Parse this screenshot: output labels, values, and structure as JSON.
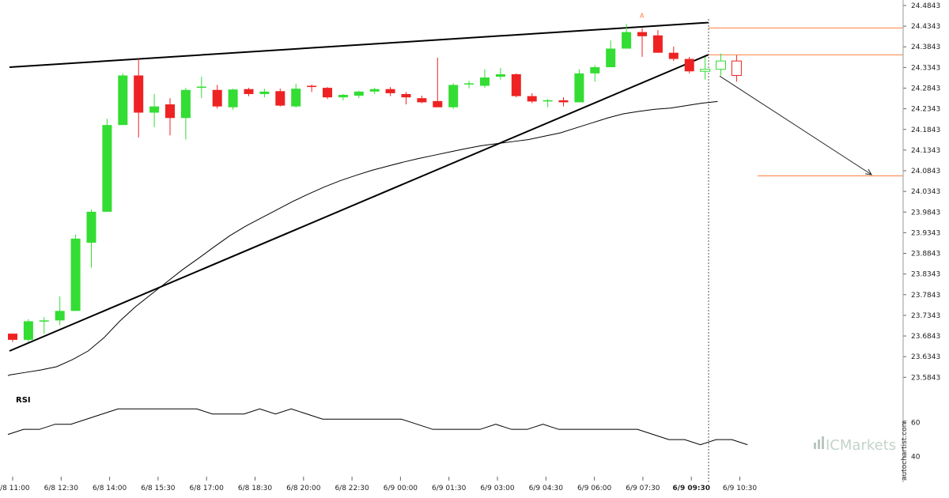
{
  "chart_data": {
    "type": "candlestick",
    "y_ticks": [
      24.4843,
      24.4343,
      24.3843,
      24.3343,
      24.2843,
      24.2343,
      24.1843,
      24.1343,
      24.0843,
      24.0343,
      23.9843,
      23.9343,
      23.8843,
      23.8343,
      23.7843,
      23.7343,
      23.6843,
      23.6343,
      23.5843
    ],
    "ylim": [
      23.56,
      24.49
    ],
    "x_ticks": [
      "6/8 11:00",
      "6/8 12:30",
      "6/8 14:00",
      "6/8 15:30",
      "6/8 17:00",
      "6/8 18:30",
      "6/8 20:00",
      "6/8 22:30",
      "6/9 00:00",
      "6/9 01:30",
      "6/9 03:00",
      "6/9 04:30",
      "6/9 06:00",
      "6/9 07:30",
      "6/9 09:30",
      "6/9 10:30"
    ],
    "highlight_tick": "6/9 09:30",
    "candles": [
      {
        "o": 23.69,
        "h": 23.69,
        "l": 23.67,
        "c": 23.675,
        "dir": "down"
      },
      {
        "o": 23.675,
        "h": 23.725,
        "l": 23.67,
        "c": 23.72,
        "dir": "up"
      },
      {
        "o": 23.72,
        "h": 23.73,
        "l": 23.69,
        "c": 23.722,
        "dir": "flat"
      },
      {
        "o": 23.722,
        "h": 23.78,
        "l": 23.71,
        "c": 23.745,
        "dir": "up"
      },
      {
        "o": 23.745,
        "h": 23.93,
        "l": 23.745,
        "c": 23.92,
        "dir": "up"
      },
      {
        "o": 23.91,
        "h": 23.99,
        "l": 23.85,
        "c": 23.985,
        "dir": "up"
      },
      {
        "o": 23.985,
        "h": 24.21,
        "l": 23.985,
        "c": 24.195,
        "dir": "up"
      },
      {
        "o": 24.195,
        "h": 24.32,
        "l": 24.195,
        "c": 24.315,
        "dir": "up"
      },
      {
        "o": 24.315,
        "h": 24.355,
        "l": 24.165,
        "c": 24.225,
        "dir": "down"
      },
      {
        "o": 24.225,
        "h": 24.27,
        "l": 24.19,
        "c": 24.24,
        "dir": "up"
      },
      {
        "o": 24.245,
        "h": 24.26,
        "l": 24.17,
        "c": 24.212,
        "dir": "down"
      },
      {
        "o": 24.212,
        "h": 24.285,
        "l": 24.16,
        "c": 24.28,
        "dir": "up"
      },
      {
        "o": 24.285,
        "h": 24.312,
        "l": 24.26,
        "c": 24.288,
        "dir": "flat"
      },
      {
        "o": 24.28,
        "h": 24.292,
        "l": 24.235,
        "c": 24.24,
        "dir": "down"
      },
      {
        "o": 24.238,
        "h": 24.283,
        "l": 24.232,
        "c": 24.281,
        "dir": "up"
      },
      {
        "o": 24.282,
        "h": 24.285,
        "l": 24.265,
        "c": 24.27,
        "dir": "down"
      },
      {
        "o": 24.27,
        "h": 24.283,
        "l": 24.262,
        "c": 24.276,
        "dir": "up"
      },
      {
        "o": 24.277,
        "h": 24.283,
        "l": 24.24,
        "c": 24.242,
        "dir": "down"
      },
      {
        "o": 24.24,
        "h": 24.295,
        "l": 24.237,
        "c": 24.283,
        "dir": "up"
      },
      {
        "o": 24.29,
        "h": 24.293,
        "l": 24.275,
        "c": 24.287,
        "dir": "down"
      },
      {
        "o": 24.285,
        "h": 24.287,
        "l": 24.258,
        "c": 24.262,
        "dir": "down"
      },
      {
        "o": 24.262,
        "h": 24.27,
        "l": 24.255,
        "c": 24.268,
        "dir": "up"
      },
      {
        "o": 24.266,
        "h": 24.278,
        "l": 24.26,
        "c": 24.276,
        "dir": "up"
      },
      {
        "o": 24.276,
        "h": 24.285,
        "l": 24.27,
        "c": 24.282,
        "dir": "up"
      },
      {
        "o": 24.282,
        "h": 24.287,
        "l": 24.265,
        "c": 24.272,
        "dir": "down"
      },
      {
        "o": 24.27,
        "h": 24.275,
        "l": 24.245,
        "c": 24.262,
        "dir": "down"
      },
      {
        "o": 24.26,
        "h": 24.266,
        "l": 24.248,
        "c": 24.25,
        "dir": "down"
      },
      {
        "o": 24.253,
        "h": 24.358,
        "l": 24.24,
        "c": 24.238,
        "dir": "down"
      },
      {
        "o": 24.238,
        "h": 24.296,
        "l": 24.234,
        "c": 24.292,
        "dir": "up"
      },
      {
        "o": 24.295,
        "h": 24.302,
        "l": 24.284,
        "c": 24.296,
        "dir": "flat"
      },
      {
        "o": 24.29,
        "h": 24.33,
        "l": 24.285,
        "c": 24.31,
        "dir": "up"
      },
      {
        "o": 24.312,
        "h": 24.333,
        "l": 24.305,
        "c": 24.318,
        "dir": "up"
      },
      {
        "o": 24.318,
        "h": 24.32,
        "l": 24.262,
        "c": 24.265,
        "dir": "down"
      },
      {
        "o": 24.265,
        "h": 24.272,
        "l": 24.248,
        "c": 24.252,
        "dir": "down"
      },
      {
        "o": 24.252,
        "h": 24.258,
        "l": 24.238,
        "c": 24.255,
        "dir": "up"
      },
      {
        "o": 24.255,
        "h": 24.262,
        "l": 24.24,
        "c": 24.25,
        "dir": "down"
      },
      {
        "o": 24.25,
        "h": 24.33,
        "l": 24.25,
        "c": 24.32,
        "dir": "up"
      },
      {
        "o": 24.32,
        "h": 24.34,
        "l": 24.3,
        "c": 24.335,
        "dir": "up"
      },
      {
        "o": 24.335,
        "h": 24.4,
        "l": 24.335,
        "c": 24.38,
        "dir": "up"
      },
      {
        "o": 24.38,
        "h": 24.44,
        "l": 24.38,
        "c": 24.42,
        "dir": "up"
      },
      {
        "o": 24.42,
        "h": 24.43,
        "l": 24.36,
        "c": 24.41,
        "dir": "down"
      },
      {
        "o": 24.412,
        "h": 24.425,
        "l": 24.37,
        "c": 24.37,
        "dir": "down"
      },
      {
        "o": 24.37,
        "h": 24.385,
        "l": 24.35,
        "c": 24.355,
        "dir": "down"
      },
      {
        "o": 24.355,
        "h": 24.36,
        "l": 24.32,
        "c": 24.325,
        "dir": "down"
      },
      {
        "o": 24.325,
        "h": 24.36,
        "l": 24.305,
        "c": 24.33,
        "dir": "up",
        "projected": true
      },
      {
        "o": 24.33,
        "h": 24.368,
        "l": 24.315,
        "c": 24.35,
        "dir": "up",
        "projected": true
      },
      {
        "o": 24.35,
        "h": 24.364,
        "l": 24.3,
        "c": 24.315,
        "dir": "down",
        "projected": true
      }
    ],
    "moving_average": [
      23.59,
      23.596,
      23.602,
      23.61,
      23.627,
      23.648,
      23.68,
      23.72,
      23.755,
      23.785,
      23.815,
      23.845,
      23.872,
      23.9,
      23.927,
      23.95,
      23.97,
      23.99,
      24.01,
      24.028,
      24.045,
      24.06,
      24.073,
      24.085,
      24.095,
      24.105,
      24.114,
      24.122,
      24.13,
      24.138,
      24.145,
      24.15,
      24.155,
      24.16,
      24.168,
      24.176,
      24.188,
      24.2,
      24.212,
      24.222,
      24.228,
      24.233,
      24.236,
      24.242,
      24.248,
      24.252
    ],
    "levels": [
      {
        "name": "resistance",
        "value": 24.43
      },
      {
        "name": "support",
        "value": 24.365
      },
      {
        "name": "target",
        "value": 24.072
      }
    ],
    "trendlines": [
      {
        "name": "upper",
        "from": [
          0,
          24.335
        ],
        "to": [
          44.2,
          24.443
        ]
      },
      {
        "name": "lower",
        "from": [
          0,
          23.648
        ],
        "to": [
          44.2,
          24.365
        ]
      }
    ],
    "forecast_arrow": {
      "from": [
        44.2,
        24.325
      ],
      "to": [
        49.5,
        24.075
      ]
    },
    "pattern_point_label": "A",
    "rsi": {
      "label": "RSI",
      "ticks": [
        60,
        40
      ],
      "ylim": [
        32,
        76
      ],
      "values": [
        53,
        56,
        56,
        59,
        59,
        62,
        65,
        68,
        68,
        68,
        68,
        68,
        68,
        65,
        65,
        65,
        68,
        65,
        68,
        65,
        62,
        62,
        62,
        62,
        62,
        62,
        59,
        56,
        56,
        56,
        56,
        59,
        56,
        56,
        59,
        56,
        56,
        56,
        56,
        56,
        56,
        53,
        50,
        50,
        47,
        50,
        50,
        47
      ]
    }
  },
  "brand": {
    "name": "ICMarkets",
    "color": "#2e9d63"
  },
  "watermark": "autochartist.com",
  "colors": {
    "up": "#33dd33",
    "down": "#ee2222",
    "projected": "#33aa33",
    "level": "#ff8040",
    "trend": "#000000"
  }
}
